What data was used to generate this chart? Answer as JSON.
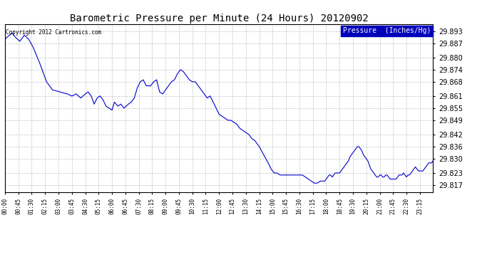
{
  "title": "Barometric Pressure per Minute (24 Hours) 20120902",
  "copyright": "Copyright 2012 Cartronics.com",
  "legend_label": "Pressure  (Inches/Hg)",
  "background_color": "#ffffff",
  "plot_bg_color": "#ffffff",
  "line_color": "#0000cc",
  "legend_bg": "#0000bb",
  "legend_text_color": "#ffffff",
  "yticks": [
    29.817,
    29.823,
    29.83,
    29.836,
    29.842,
    29.849,
    29.855,
    29.861,
    29.868,
    29.874,
    29.88,
    29.887,
    29.893
  ],
  "ylim": [
    29.8135,
    29.8965
  ],
  "xtick_labels": [
    "00:00",
    "00:45",
    "01:30",
    "02:15",
    "03:00",
    "03:45",
    "04:30",
    "05:15",
    "06:00",
    "06:45",
    "07:30",
    "08:15",
    "09:00",
    "09:45",
    "10:30",
    "11:15",
    "12:00",
    "12:45",
    "13:30",
    "14:15",
    "15:00",
    "15:45",
    "16:30",
    "17:15",
    "18:00",
    "18:45",
    "19:30",
    "20:15",
    "21:00",
    "21:45",
    "22:30",
    "23:15"
  ],
  "keypoints": [
    [
      0,
      29.889
    ],
    [
      15,
      29.891
    ],
    [
      25,
      29.892
    ],
    [
      35,
      29.89
    ],
    [
      50,
      29.888
    ],
    [
      65,
      29.891
    ],
    [
      80,
      29.889
    ],
    [
      95,
      29.885
    ],
    [
      115,
      29.878
    ],
    [
      140,
      29.868
    ],
    [
      160,
      29.864
    ],
    [
      185,
      29.863
    ],
    [
      210,
      29.862
    ],
    [
      225,
      29.861
    ],
    [
      240,
      29.862
    ],
    [
      255,
      29.86
    ],
    [
      270,
      29.862
    ],
    [
      280,
      29.863
    ],
    [
      290,
      29.861
    ],
    [
      300,
      29.857
    ],
    [
      310,
      29.86
    ],
    [
      320,
      29.861
    ],
    [
      330,
      29.859
    ],
    [
      340,
      29.856
    ],
    [
      350,
      29.855
    ],
    [
      360,
      29.854
    ],
    [
      368,
      29.858
    ],
    [
      380,
      29.856
    ],
    [
      390,
      29.857
    ],
    [
      400,
      29.855
    ],
    [
      415,
      29.857
    ],
    [
      425,
      29.858
    ],
    [
      435,
      29.86
    ],
    [
      445,
      29.865
    ],
    [
      455,
      29.868
    ],
    [
      465,
      29.869
    ],
    [
      475,
      29.866
    ],
    [
      490,
      29.866
    ],
    [
      500,
      29.868
    ],
    [
      510,
      29.869
    ],
    [
      520,
      29.863
    ],
    [
      530,
      29.862
    ],
    [
      540,
      29.864
    ],
    [
      550,
      29.866
    ],
    [
      560,
      29.868
    ],
    [
      570,
      29.869
    ],
    [
      580,
      29.872
    ],
    [
      590,
      29.874
    ],
    [
      600,
      29.873
    ],
    [
      610,
      29.871
    ],
    [
      620,
      29.869
    ],
    [
      630,
      29.868
    ],
    [
      640,
      29.868
    ],
    [
      650,
      29.866
    ],
    [
      660,
      29.864
    ],
    [
      670,
      29.862
    ],
    [
      680,
      29.86
    ],
    [
      690,
      29.861
    ],
    [
      700,
      29.858
    ],
    [
      710,
      29.855
    ],
    [
      720,
      29.852
    ],
    [
      730,
      29.851
    ],
    [
      740,
      29.85
    ],
    [
      750,
      29.849
    ],
    [
      760,
      29.849
    ],
    [
      770,
      29.848
    ],
    [
      780,
      29.847
    ],
    [
      790,
      29.845
    ],
    [
      800,
      29.844
    ],
    [
      810,
      29.843
    ],
    [
      820,
      29.842
    ],
    [
      830,
      29.84
    ],
    [
      840,
      29.839
    ],
    [
      855,
      29.836
    ],
    [
      870,
      29.832
    ],
    [
      885,
      29.828
    ],
    [
      895,
      29.825
    ],
    [
      905,
      29.823
    ],
    [
      915,
      29.823
    ],
    [
      925,
      29.822
    ],
    [
      935,
      29.822
    ],
    [
      945,
      29.822
    ],
    [
      960,
      29.822
    ],
    [
      975,
      29.822
    ],
    [
      990,
      29.822
    ],
    [
      1000,
      29.822
    ],
    [
      1010,
      29.821
    ],
    [
      1020,
      29.82
    ],
    [
      1030,
      29.819
    ],
    [
      1040,
      29.818
    ],
    [
      1050,
      29.818
    ],
    [
      1060,
      29.819
    ],
    [
      1070,
      29.819
    ],
    [
      1075,
      29.819
    ],
    [
      1080,
      29.82
    ],
    [
      1085,
      29.821
    ],
    [
      1090,
      29.822
    ],
    [
      1095,
      29.822
    ],
    [
      1100,
      29.821
    ],
    [
      1105,
      29.822
    ],
    [
      1110,
      29.823
    ],
    [
      1115,
      29.823
    ],
    [
      1120,
      29.823
    ],
    [
      1125,
      29.823
    ],
    [
      1130,
      29.824
    ],
    [
      1135,
      29.825
    ],
    [
      1140,
      29.826
    ],
    [
      1150,
      29.828
    ],
    [
      1155,
      29.829
    ],
    [
      1160,
      29.831
    ],
    [
      1170,
      29.833
    ],
    [
      1175,
      29.834
    ],
    [
      1180,
      29.835
    ],
    [
      1185,
      29.836
    ],
    [
      1190,
      29.836
    ],
    [
      1195,
      29.835
    ],
    [
      1200,
      29.834
    ],
    [
      1205,
      29.832
    ],
    [
      1210,
      29.831
    ],
    [
      1215,
      29.83
    ],
    [
      1220,
      29.829
    ],
    [
      1225,
      29.827
    ],
    [
      1230,
      29.825
    ],
    [
      1235,
      29.824
    ],
    [
      1240,
      29.823
    ],
    [
      1245,
      29.822
    ],
    [
      1250,
      29.821
    ],
    [
      1255,
      29.821
    ],
    [
      1260,
      29.822
    ],
    [
      1265,
      29.822
    ],
    [
      1270,
      29.821
    ],
    [
      1275,
      29.821
    ],
    [
      1280,
      29.822
    ],
    [
      1285,
      29.822
    ],
    [
      1290,
      29.821
    ],
    [
      1295,
      29.82
    ],
    [
      1300,
      29.82
    ],
    [
      1305,
      29.82
    ],
    [
      1310,
      29.82
    ],
    [
      1315,
      29.82
    ],
    [
      1320,
      29.821
    ],
    [
      1325,
      29.822
    ],
    [
      1330,
      29.822
    ],
    [
      1335,
      29.822
    ],
    [
      1340,
      29.823
    ],
    [
      1345,
      29.822
    ],
    [
      1350,
      29.821
    ],
    [
      1355,
      29.822
    ],
    [
      1360,
      29.822
    ],
    [
      1365,
      29.823
    ],
    [
      1370,
      29.824
    ],
    [
      1375,
      29.825
    ],
    [
      1380,
      29.826
    ],
    [
      1385,
      29.825
    ],
    [
      1390,
      29.824
    ],
    [
      1395,
      29.824
    ],
    [
      1400,
      29.824
    ],
    [
      1405,
      29.824
    ],
    [
      1410,
      29.825
    ],
    [
      1415,
      29.826
    ],
    [
      1420,
      29.827
    ],
    [
      1425,
      29.828
    ],
    [
      1430,
      29.828
    ],
    [
      1435,
      29.828
    ],
    [
      1439,
      29.829
    ]
  ]
}
